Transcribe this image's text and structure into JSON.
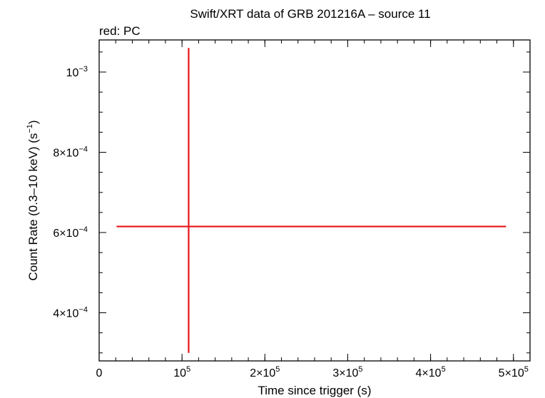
{
  "chart_data": {
    "type": "scatter",
    "title": "Swift/XRT data of GRB 201216A – source 11",
    "subtitle": "red: PC",
    "xlabel": "Time since trigger (s)",
    "ylabel_main": "Count Rate (0.3–10 keV) (s",
    "ylabel_sup": "−1",
    "ylabel_close": ")",
    "xlim": [
      0,
      520000
    ],
    "ylim": [
      0.00028,
      0.00108
    ],
    "x_scale": "linear",
    "y_scale": "linear",
    "grid": false,
    "x_ticks": [
      {
        "value": 0,
        "base": "0",
        "exp": ""
      },
      {
        "value": 100000,
        "base": "10",
        "exp": "5"
      },
      {
        "value": 200000,
        "base": "2×10",
        "exp": "5"
      },
      {
        "value": 300000,
        "base": "3×10",
        "exp": "5"
      },
      {
        "value": 400000,
        "base": "4×10",
        "exp": "5"
      },
      {
        "value": 500000,
        "base": "5×10",
        "exp": "5"
      }
    ],
    "x_minor_step": 20000,
    "y_ticks": [
      {
        "value": 0.0004,
        "base": "4×10",
        "exp": "−4"
      },
      {
        "value": 0.0006,
        "base": "6×10",
        "exp": "−4"
      },
      {
        "value": 0.0008,
        "base": "8×10",
        "exp": "−4"
      },
      {
        "value": 0.001,
        "base": "10",
        "exp": "−3"
      }
    ],
    "y_minor_step": 5e-05,
    "series": [
      {
        "color": "#e8141c",
        "points": [
          {
            "x": 108000,
            "xerr_low": 87000,
            "xerr_high": 383000,
            "y": 0.000615,
            "yerr_low": 0.000315,
            "yerr_high": 0.000445
          }
        ]
      }
    ]
  }
}
